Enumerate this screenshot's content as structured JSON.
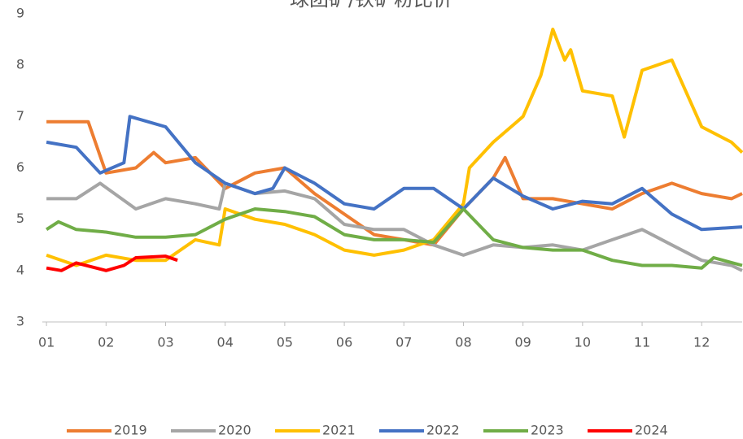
{
  "chart_data": {
    "type": "line",
    "title": "球团矿/铁矿粉比价",
    "xlim": [
      0.93,
      12.68
    ],
    "xticks": [
      {
        "value": 1,
        "label": "01"
      },
      {
        "value": 2,
        "label": "02"
      },
      {
        "value": 3,
        "label": "03"
      },
      {
        "value": 4,
        "label": "04"
      },
      {
        "value": 5,
        "label": "05"
      },
      {
        "value": 6,
        "label": "06"
      },
      {
        "value": 7,
        "label": "07"
      },
      {
        "value": 8,
        "label": "08"
      },
      {
        "value": 9,
        "label": "09"
      },
      {
        "value": 10,
        "label": "10"
      },
      {
        "value": 11,
        "label": "11"
      },
      {
        "value": 12,
        "label": "12"
      }
    ],
    "ylim": [
      3,
      9
    ],
    "yticks": [
      3,
      4,
      5,
      6,
      7,
      8,
      9
    ],
    "grid": false,
    "legend": "bottom",
    "series": [
      {
        "name": "2019",
        "color": "#ed7d31",
        "x": [
          1,
          1.5,
          1.7,
          2,
          2.5,
          2.8,
          3,
          3.5,
          4,
          4.5,
          5,
          5.5,
          6,
          6.5,
          7,
          7.5,
          8,
          8.5,
          8.7,
          9,
          9.5,
          10,
          10.5,
          11,
          11.5,
          12,
          12.5,
          12.68
        ],
        "values": [
          6.9,
          6.9,
          6.9,
          5.9,
          6.0,
          6.3,
          6.1,
          6.2,
          5.6,
          5.9,
          6.0,
          5.5,
          5.1,
          4.7,
          4.6,
          4.5,
          5.2,
          5.8,
          6.2,
          5.4,
          5.4,
          5.3,
          5.2,
          5.5,
          5.7,
          5.5,
          5.4,
          5.5
        ]
      },
      {
        "name": "2020",
        "color": "#a5a5a5",
        "x": [
          1,
          1.5,
          1.9,
          2.5,
          3,
          3.5,
          3.9,
          4,
          4.5,
          5,
          5.5,
          6,
          6.5,
          7,
          7.5,
          8,
          8.5,
          9,
          9.5,
          10,
          10.5,
          11,
          11.5,
          12,
          12.5,
          12.68
        ],
        "values": [
          5.4,
          5.4,
          5.7,
          5.2,
          5.4,
          5.3,
          5.2,
          5.7,
          5.5,
          5.55,
          5.4,
          4.9,
          4.8,
          4.8,
          4.5,
          4.3,
          4.5,
          4.45,
          4.5,
          4.4,
          4.6,
          4.8,
          4.5,
          4.2,
          4.1,
          4.0
        ]
      },
      {
        "name": "2021",
        "color": "#ffc000",
        "x": [
          1,
          1.5,
          2,
          2.5,
          3,
          3.5,
          3.9,
          4,
          4.5,
          5,
          5.5,
          6,
          6.5,
          7,
          7.5,
          8,
          8.1,
          8.5,
          9,
          9.3,
          9.5,
          9.7,
          9.8,
          10,
          10.5,
          10.7,
          11,
          11.5,
          12,
          12.5,
          12.68
        ],
        "values": [
          4.3,
          4.1,
          4.3,
          4.2,
          4.2,
          4.6,
          4.5,
          5.2,
          5.0,
          4.9,
          4.7,
          4.4,
          4.3,
          4.4,
          4.6,
          5.3,
          6.0,
          6.5,
          7.0,
          7.8,
          8.7,
          8.1,
          8.3,
          7.5,
          7.4,
          6.6,
          7.9,
          8.1,
          6.8,
          6.5,
          6.3
        ]
      },
      {
        "name": "2022",
        "color": "#4472c4",
        "x": [
          1,
          1.5,
          1.9,
          2.3,
          2.4,
          3,
          3.5,
          4,
          4.5,
          4.8,
          5,
          5.5,
          6,
          6.5,
          7,
          7.5,
          8,
          8.5,
          9,
          9.5,
          10,
          10.5,
          11,
          11.5,
          12,
          12.68
        ],
        "values": [
          6.5,
          6.4,
          5.9,
          6.1,
          7.0,
          6.8,
          6.1,
          5.7,
          5.5,
          5.6,
          6.0,
          5.7,
          5.3,
          5.2,
          5.6,
          5.6,
          5.2,
          5.8,
          5.45,
          5.2,
          5.35,
          5.3,
          5.6,
          5.1,
          4.8,
          4.85
        ]
      },
      {
        "name": "2023",
        "color": "#70ad47",
        "x": [
          1,
          1.2,
          1.5,
          2,
          2.5,
          3,
          3.5,
          4,
          4.5,
          5,
          5.5,
          6,
          6.5,
          7,
          7.5,
          8,
          8.5,
          9,
          9.5,
          10,
          10.5,
          11,
          11.5,
          12,
          12.2,
          12.68
        ],
        "values": [
          4.8,
          4.95,
          4.8,
          4.75,
          4.65,
          4.65,
          4.7,
          5.0,
          5.2,
          5.15,
          5.05,
          4.7,
          4.6,
          4.6,
          4.55,
          5.2,
          4.6,
          4.45,
          4.4,
          4.4,
          4.2,
          4.1,
          4.1,
          4.05,
          4.25,
          4.1
        ]
      },
      {
        "name": "2024",
        "color": "#ff0000",
        "x": [
          1,
          1.25,
          1.5,
          2,
          2.3,
          2.5,
          3,
          3.2
        ],
        "values": [
          4.05,
          4.0,
          4.15,
          4.0,
          4.1,
          4.25,
          4.28,
          4.2
        ]
      }
    ]
  }
}
